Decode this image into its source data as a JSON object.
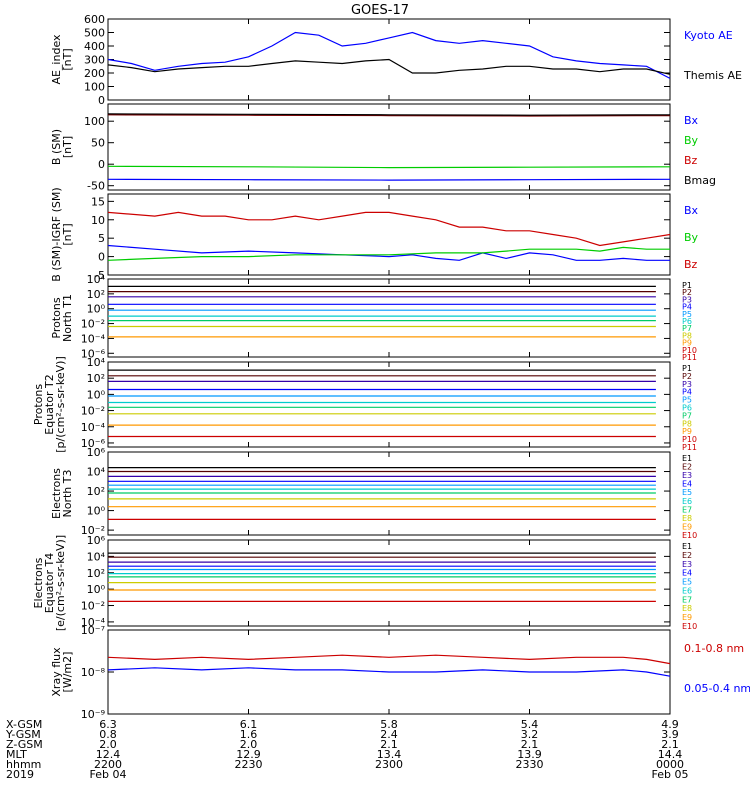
{
  "title": "GOES-17",
  "colors": {
    "blue": "#0000ff",
    "green": "#00cc00",
    "red": "#cc0000",
    "darkred": "#7a0000",
    "black": "#000000"
  },
  "chart_data": [
    {
      "type": "line",
      "id": "ae",
      "ylabel": [
        "AE_index",
        "[nT]"
      ],
      "ylim": [
        0,
        600
      ],
      "yticks": [
        "0",
        "100",
        "200",
        "300",
        "400",
        "500",
        "600"
      ],
      "series": [
        {
          "name": "Kyoto AE",
          "color": "blue",
          "x": [
            0,
            5,
            10,
            15,
            20,
            25,
            30,
            35,
            40,
            45,
            50,
            55,
            60,
            65,
            70,
            75,
            80,
            85,
            90,
            95,
            100,
            105,
            110,
            115,
            120
          ],
          "values": [
            300,
            270,
            220,
            250,
            270,
            280,
            320,
            400,
            500,
            480,
            400,
            420,
            460,
            500,
            440,
            420,
            440,
            420,
            400,
            320,
            290,
            270,
            260,
            250,
            160
          ]
        },
        {
          "name": "Themis AE",
          "color": "black",
          "x": [
            0,
            5,
            10,
            15,
            20,
            25,
            30,
            35,
            40,
            45,
            50,
            55,
            60,
            65,
            70,
            75,
            80,
            85,
            90,
            95,
            100,
            105,
            110,
            115,
            120
          ],
          "values": [
            260,
            240,
            210,
            230,
            240,
            250,
            250,
            270,
            290,
            280,
            270,
            290,
            300,
            200,
            200,
            220,
            230,
            250,
            250,
            230,
            230,
            210,
            230,
            230,
            190
          ]
        }
      ]
    },
    {
      "type": "line",
      "id": "bsm",
      "ylabel": [
        "B (SM)",
        "[nT]"
      ],
      "ylim": [
        -60,
        140
      ],
      "yticks": [
        "-50",
        "0",
        "50",
        "100"
      ],
      "series": [
        {
          "name": "Bx",
          "color": "blue",
          "x": [
            0,
            30,
            60,
            90,
            120
          ],
          "values": [
            -35,
            -36,
            -37,
            -36,
            -35
          ]
        },
        {
          "name": "By",
          "color": "green",
          "x": [
            0,
            30,
            60,
            90,
            120
          ],
          "values": [
            -5,
            -6,
            -8,
            -7,
            -6
          ]
        },
        {
          "name": "Bz",
          "color": "darkred",
          "x": [
            0,
            30,
            60,
            90,
            120
          ],
          "values": [
            115,
            114,
            113,
            112,
            113
          ]
        },
        {
          "name": "Bmag",
          "color": "black",
          "x": [
            0,
            30,
            60,
            90,
            120
          ],
          "values": [
            117,
            116,
            115,
            114,
            115
          ]
        }
      ]
    },
    {
      "type": "line",
      "id": "bdiff",
      "ylabel": [
        "B (SM)-IGRF (SM)",
        "[nT]"
      ],
      "ylim": [
        -5,
        17
      ],
      "yticks": [
        "-5",
        "0",
        "5",
        "10",
        "15"
      ],
      "series": [
        {
          "name": "Bx",
          "color": "blue",
          "x": [
            0,
            10,
            20,
            30,
            40,
            50,
            60,
            65,
            70,
            75,
            80,
            85,
            90,
            95,
            100,
            105,
            110,
            115,
            120
          ],
          "values": [
            3,
            2,
            1,
            1.5,
            1,
            0.5,
            0,
            0.5,
            -0.5,
            -1,
            1,
            -0.5,
            1,
            0.5,
            -1,
            -1,
            -0.5,
            -1,
            -1
          ]
        },
        {
          "name": "By",
          "color": "green",
          "x": [
            0,
            10,
            20,
            30,
            40,
            50,
            60,
            70,
            80,
            85,
            90,
            95,
            100,
            105,
            110,
            115,
            120
          ],
          "values": [
            -1,
            -0.5,
            0,
            0,
            0.5,
            0.5,
            0.5,
            1,
            1,
            1.5,
            2,
            2,
            2,
            1.5,
            2.5,
            2,
            2
          ]
        },
        {
          "name": "Bz",
          "color": "red",
          "x": [
            0,
            10,
            15,
            20,
            25,
            30,
            35,
            40,
            45,
            50,
            55,
            60,
            65,
            70,
            75,
            80,
            85,
            90,
            95,
            100,
            105,
            110,
            115,
            120
          ],
          "values": [
            12,
            11,
            12,
            11,
            11,
            10,
            10,
            11,
            10,
            11,
            12,
            12,
            11,
            10,
            8,
            8,
            7,
            7,
            6,
            5,
            3,
            4,
            5,
            6
          ]
        }
      ]
    },
    {
      "type": "line",
      "id": "protons_t1",
      "ylabel": [
        "Protons",
        "North T1"
      ],
      "ylog": true,
      "ylim": [
        -6.5,
        4
      ],
      "yticks": [
        "10⁻⁶",
        "10⁻⁴",
        "10⁻²",
        "10⁰",
        "10²",
        "10⁴"
      ],
      "ytick_exp": [
        -6,
        -4,
        -2,
        0,
        2,
        4
      ],
      "channels": [
        "P1",
        "P2",
        "P3",
        "P4",
        "P5",
        "P6",
        "P7",
        "P8",
        "P9",
        "P10",
        "P11"
      ],
      "series": [
        {
          "name": "P1",
          "color": "#000000",
          "log_level": 3.0
        },
        {
          "name": "P2",
          "color": "#550000",
          "log_level": 2.3
        },
        {
          "name": "P3",
          "color": "#3300aa",
          "log_level": 1.6
        },
        {
          "name": "P4",
          "color": "#0000ff",
          "log_level": 0.6
        },
        {
          "name": "P5",
          "color": "#0099ff",
          "log_level": -0.2
        },
        {
          "name": "P6",
          "color": "#00cccc",
          "log_level": -1.0
        },
        {
          "name": "P7",
          "color": "#00cc66",
          "log_level": -1.6
        },
        {
          "name": "P8",
          "color": "#cccc00",
          "log_level": -2.4
        },
        {
          "name": "P9",
          "color": "#ff9900",
          "log_level": -3.8
        }
      ]
    },
    {
      "type": "line",
      "id": "protons_t2",
      "ylabel": [
        "Protons",
        "Equator T2",
        "[p/(cm²-s-sr-keV)]"
      ],
      "ylog": true,
      "ylim": [
        -6.5,
        4
      ],
      "yticks": [
        "10⁻⁶",
        "10⁻⁴",
        "10⁻²",
        "10⁰",
        "10²",
        "10⁴"
      ],
      "ytick_exp": [
        -6,
        -4,
        -2,
        0,
        2,
        4
      ],
      "channels": [
        "P1",
        "P2",
        "P3",
        "P4",
        "P5",
        "P6",
        "P7",
        "P8",
        "P9",
        "P10",
        "P11"
      ],
      "series": [
        {
          "name": "P1",
          "color": "#000000",
          "log_level": 3.0
        },
        {
          "name": "P2",
          "color": "#550000",
          "log_level": 2.3
        },
        {
          "name": "P3",
          "color": "#3300aa",
          "log_level": 1.6
        },
        {
          "name": "P4",
          "color": "#0000ff",
          "log_level": 0.6
        },
        {
          "name": "P5",
          "color": "#0099ff",
          "log_level": -0.2
        },
        {
          "name": "P6",
          "color": "#00cccc",
          "log_level": -1.0
        },
        {
          "name": "P7",
          "color": "#00cc66",
          "log_level": -1.6
        },
        {
          "name": "P8",
          "color": "#cccc00",
          "log_level": -2.4
        },
        {
          "name": "P9",
          "color": "#ff9900",
          "log_level": -3.8
        },
        {
          "name": "P10",
          "color": "#cc0000",
          "log_level": -5.2
        }
      ]
    },
    {
      "type": "line",
      "id": "electrons_t3",
      "ylabel": [
        "Electrons",
        "North T3"
      ],
      "ylog": true,
      "ylim": [
        -2.5,
        6
      ],
      "yticks": [
        "10⁻²",
        "10⁰",
        "10²",
        "10⁴",
        "10⁶"
      ],
      "ytick_exp": [
        -2,
        0,
        2,
        4,
        6
      ],
      "channels": [
        "E1",
        "E2",
        "E3",
        "E4",
        "E5",
        "E6",
        "E7",
        "E8",
        "E9",
        "E10"
      ],
      "series": [
        {
          "name": "E1",
          "color": "#000000",
          "log_level": 4.4
        },
        {
          "name": "E2",
          "color": "#550000",
          "log_level": 4.0
        },
        {
          "name": "E3",
          "color": "#3300aa",
          "log_level": 3.5
        },
        {
          "name": "E4",
          "color": "#0000ff",
          "log_level": 3.0
        },
        {
          "name": "E5",
          "color": "#0099ff",
          "log_level": 2.6
        },
        {
          "name": "E6",
          "color": "#00cccc",
          "log_level": 2.2
        },
        {
          "name": "E7",
          "color": "#00cc66",
          "log_level": 1.8
        },
        {
          "name": "E8",
          "color": "#cccc00",
          "log_level": 1.2
        },
        {
          "name": "E9",
          "color": "#ff9900",
          "log_level": 0.4
        },
        {
          "name": "E10",
          "color": "#cc0000",
          "log_level": -0.9
        }
      ]
    },
    {
      "type": "line",
      "id": "electrons_t4",
      "ylabel": [
        "Electrons",
        "Equator T4",
        "[e/(cm²-s-sr-keV)]"
      ],
      "ylog": true,
      "ylim": [
        -4.5,
        6
      ],
      "yticks": [
        "10⁻⁴",
        "10⁻²",
        "10⁰",
        "10²",
        "10⁴",
        "10⁶"
      ],
      "ytick_exp": [
        -4,
        -2,
        0,
        2,
        4,
        6
      ],
      "channels": [
        "E1",
        "E2",
        "E3",
        "E4",
        "E5",
        "E6",
        "E7",
        "E8",
        "E9",
        "E10"
      ],
      "series": [
        {
          "name": "E1",
          "color": "#000000",
          "log_level": 4.4
        },
        {
          "name": "E2",
          "color": "#550000",
          "log_level": 3.9
        },
        {
          "name": "E3",
          "color": "#3300aa",
          "log_level": 3.3
        },
        {
          "name": "E4",
          "color": "#0000ff",
          "log_level": 2.8
        },
        {
          "name": "E5",
          "color": "#0099ff",
          "log_level": 2.4
        },
        {
          "name": "E6",
          "color": "#00cccc",
          "log_level": 1.9
        },
        {
          "name": "E7",
          "color": "#00cc66",
          "log_level": 1.5
        },
        {
          "name": "E8",
          "color": "#cccc00",
          "log_level": 0.8
        },
        {
          "name": "E9",
          "color": "#ff9900",
          "log_level": -0.1
        },
        {
          "name": "E10",
          "color": "#cc0000",
          "log_level": -1.5
        }
      ]
    },
    {
      "type": "line",
      "id": "xray",
      "ylabel": [
        "Xray flux",
        "[W/m2]"
      ],
      "ylog": true,
      "ylim": [
        -9,
        -7
      ],
      "yticks": [
        "10⁻⁹",
        "10⁻⁸",
        "10⁻⁷"
      ],
      "ytick_exp": [
        -9,
        -8,
        -7
      ],
      "series": [
        {
          "name": "0.1-0.8 nm",
          "color": "red",
          "x": [
            0,
            10,
            20,
            30,
            40,
            50,
            60,
            70,
            80,
            90,
            100,
            110,
            115,
            120
          ],
          "values": [
            -7.65,
            -7.7,
            -7.65,
            -7.7,
            -7.65,
            -7.6,
            -7.65,
            -7.6,
            -7.65,
            -7.7,
            -7.65,
            -7.65,
            -7.7,
            -7.8
          ]
        },
        {
          "name": "0.05-0.4 nm",
          "color": "blue",
          "x": [
            0,
            10,
            20,
            30,
            40,
            50,
            60,
            70,
            80,
            90,
            100,
            110,
            115,
            120
          ],
          "values": [
            -7.95,
            -7.9,
            -7.95,
            -7.9,
            -7.95,
            -7.95,
            -8.0,
            -8.0,
            -7.95,
            -8.0,
            -8.0,
            -7.95,
            -8.0,
            -8.1
          ]
        }
      ]
    }
  ],
  "x_axis": {
    "xlim": [
      0,
      120
    ],
    "tick_x": [
      0,
      30,
      60,
      90,
      120
    ],
    "rows": [
      {
        "label": "X-GSM",
        "values": [
          "6.3",
          "6.1",
          "5.8",
          "5.4",
          "4.9"
        ]
      },
      {
        "label": "Y-GSM",
        "values": [
          "0.8",
          "1.6",
          "2.4",
          "3.2",
          "3.9"
        ]
      },
      {
        "label": "Z-GSM",
        "values": [
          "2.0",
          "2.0",
          "2.1",
          "2.1",
          "2.1"
        ]
      },
      {
        "label": "MLT",
        "values": [
          "12.4",
          "12.9",
          "13.4",
          "13.9",
          "14.4"
        ]
      },
      {
        "label": "hhmm",
        "values": [
          "2200",
          "2230",
          "2300",
          "2330",
          "0000"
        ]
      },
      {
        "label": "2019",
        "values": [
          "Feb 04",
          "",
          "",
          "",
          "Feb 05"
        ]
      }
    ]
  },
  "legends": {
    "ae": [
      {
        "text": "Kyoto AE",
        "color": "blue"
      },
      {
        "text": "Themis AE",
        "color": "black"
      }
    ],
    "bsm": [
      {
        "text": "Bx",
        "color": "blue"
      },
      {
        "text": "By",
        "color": "green"
      },
      {
        "text": "Bz",
        "color": "red"
      },
      {
        "text": "Bmag",
        "color": "black"
      }
    ],
    "bdiff": [
      {
        "text": "Bx",
        "color": "blue"
      },
      {
        "text": "By",
        "color": "green"
      },
      {
        "text": "Bz",
        "color": "red"
      }
    ],
    "xray": [
      {
        "text": "0.1-0.8 nm",
        "color": "red"
      },
      {
        "text": "0.05-0.4 nm",
        "color": "blue"
      }
    ]
  }
}
